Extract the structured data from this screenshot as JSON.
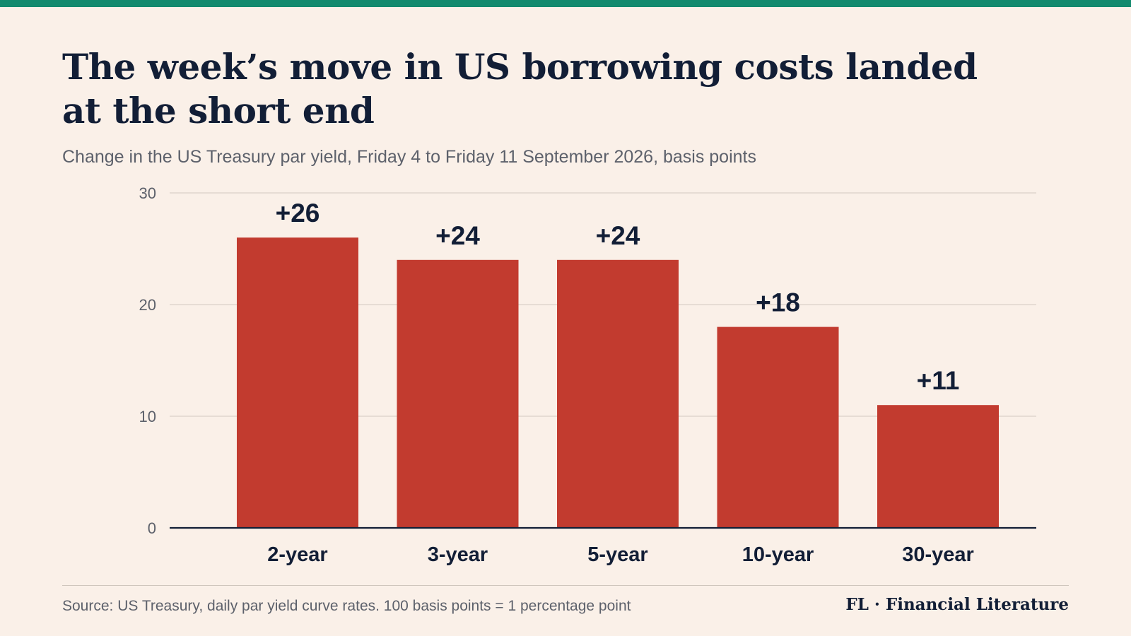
{
  "header": {
    "title": "The week’s move in US borrowing costs landed at the short end",
    "subtitle": "Change in the US Treasury par yield, Friday 4 to Friday 11 September 2026, basis points"
  },
  "footer": {
    "source": "Source: US Treasury, daily par yield curve rates. 100 basis points = 1 percentage point",
    "brand": "FL · Financial Literature"
  },
  "colors": {
    "accent_bar": "#138a6e",
    "bar": "#c23b2f",
    "text_dark": "#121e36",
    "text_muted": "#5d616b",
    "gridline": "#d9d0c7",
    "background": "#faf0e8"
  },
  "chart_data": {
    "type": "bar",
    "categories": [
      "2-year",
      "3-year",
      "5-year",
      "10-year",
      "30-year"
    ],
    "values": [
      26,
      24,
      24,
      18,
      11
    ],
    "value_labels": [
      "+26",
      "+24",
      "+24",
      "+18",
      "+11"
    ],
    "ylim": [
      0,
      30
    ],
    "yticks": [
      0,
      10,
      20,
      30
    ],
    "grid": true,
    "legend": "none"
  }
}
